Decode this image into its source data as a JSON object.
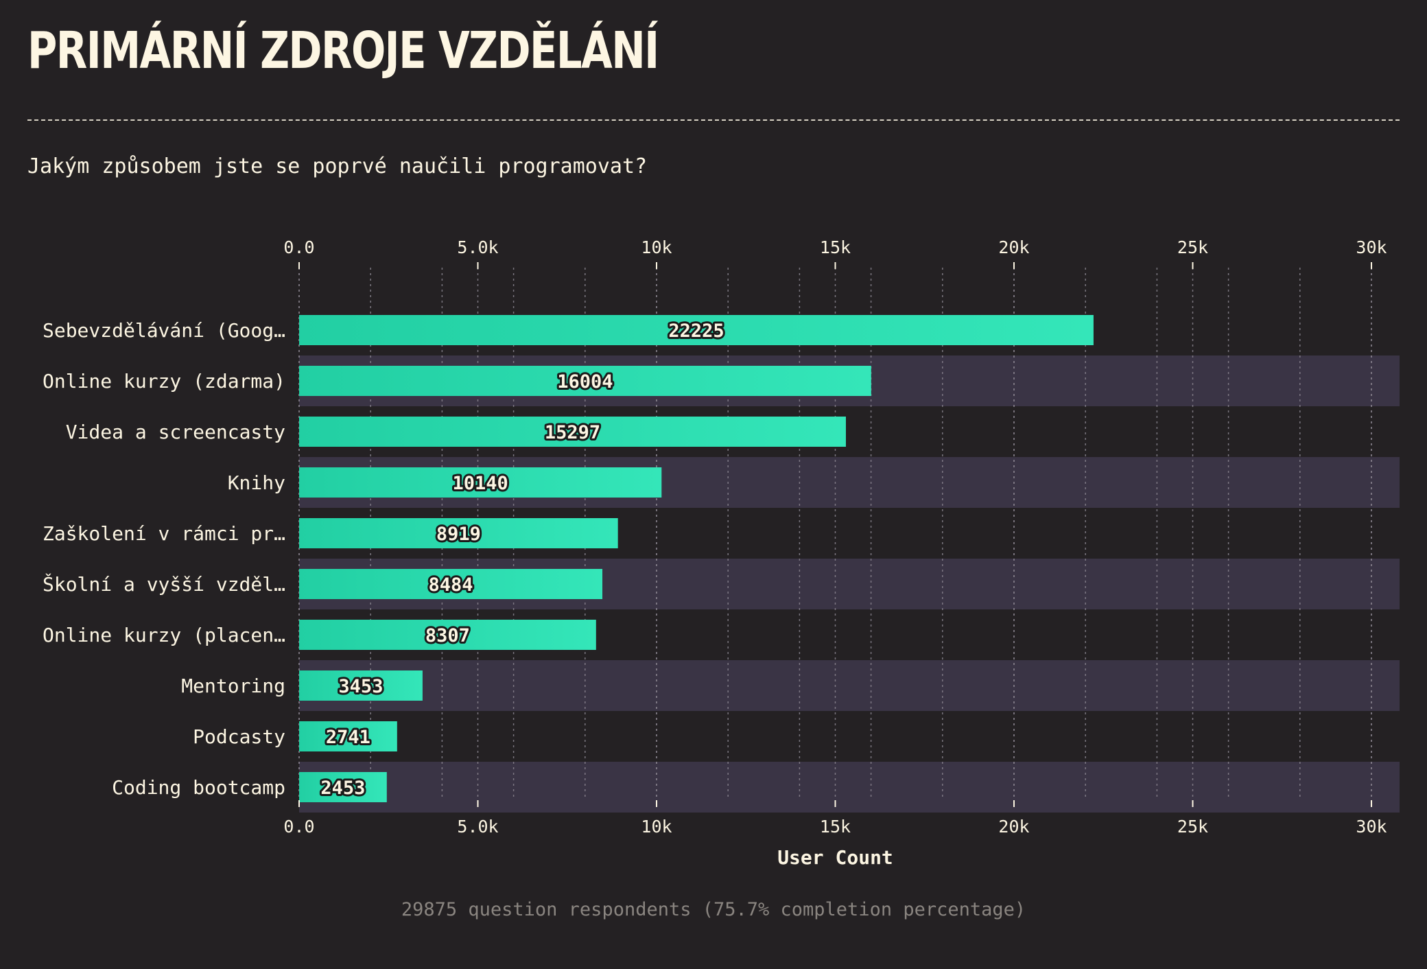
{
  "header": {
    "title": "PRIMÁRNÍ ZDROJE VZDĚLÁNÍ",
    "subtitle": "Jakým způsobem jste se poprvé naučili programovat?"
  },
  "footer": {
    "note": "29875 question respondents (75.7% completion percentage)"
  },
  "colors": {
    "background": "#242123",
    "band": "#3a3445",
    "bar_start": "#22cfa3",
    "bar_end": "#34e6b9",
    "text": "#fdf6e3",
    "grid": "#8a8590"
  },
  "chart_data": {
    "type": "bar",
    "orientation": "horizontal",
    "categories": [
      "Sebevzdělávání (Goog…",
      "Online kurzy (zdarma)",
      "Videa a screencasty",
      "Knihy",
      "Zaškolení v rámci pr…",
      "Školní a vyšší vzděl…",
      "Online kurzy (placen…",
      "Mentoring",
      "Podcasty",
      "Coding bootcamp"
    ],
    "values": [
      22225,
      16004,
      15297,
      10140,
      8919,
      8484,
      8307,
      3453,
      2741,
      2453
    ],
    "data_labels": [
      "22225",
      "16004",
      "15297",
      "10140",
      "8919",
      "8484",
      "8307",
      "3453",
      "2741",
      "2453"
    ],
    "xlabel": "User Count",
    "ylabel": "",
    "xlim": [
      0,
      30800
    ],
    "ticks": [
      0,
      5000,
      10000,
      15000,
      20000,
      25000,
      30000
    ],
    "tick_labels": [
      "0.0",
      "5.0k",
      "10k",
      "15k",
      "20k",
      "25k",
      "30k"
    ],
    "minor_grid_step": 2000,
    "grid": true,
    "tick_axes": "top and bottom"
  }
}
